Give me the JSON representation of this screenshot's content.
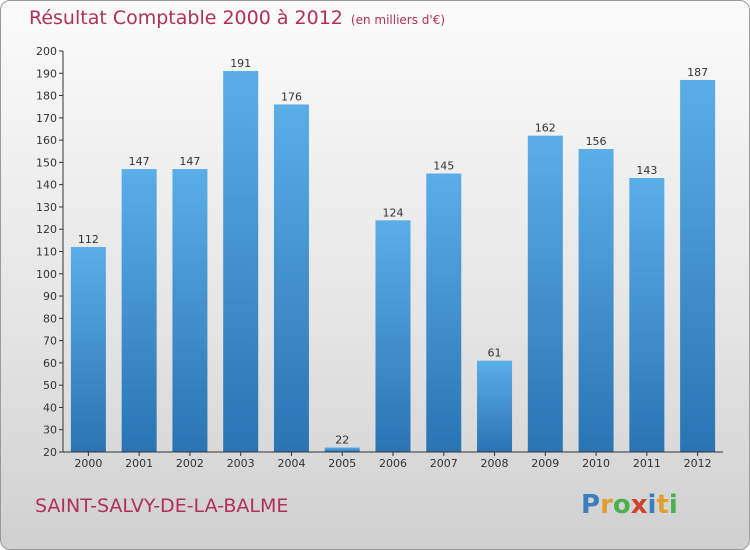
{
  "title": "Résultat Comptable 2000 à 2012",
  "subtitle": "(en milliers d'€)",
  "commune": "SAINT-SALVY-DE-LA-BALME",
  "logo": {
    "letters": [
      "P",
      "r",
      "o",
      "x",
      "i",
      "t",
      "i"
    ],
    "colors": [
      "#3a7ec0",
      "#e0a030",
      "#4caf50",
      "#d0402c",
      "#3a7ec0",
      "#e0a030",
      "#4caf50"
    ]
  },
  "chart_data": {
    "type": "bar",
    "categories": [
      "2000",
      "2001",
      "2002",
      "2003",
      "2004",
      "2005",
      "2006",
      "2007",
      "2008",
      "2009",
      "2010",
      "2011",
      "2012"
    ],
    "values": [
      112,
      147,
      147,
      191,
      176,
      22,
      124,
      145,
      61,
      162,
      156,
      143,
      187
    ],
    "ylim": [
      20,
      200
    ],
    "yticks": [
      20,
      30,
      40,
      50,
      60,
      70,
      80,
      90,
      100,
      110,
      120,
      130,
      140,
      150,
      160,
      170,
      180,
      190,
      200
    ],
    "grid": false,
    "colors": {
      "bar_top": "#5aaee8",
      "bar_bottom": "#2a74b4",
      "axis": "#333333",
      "label": "#333333"
    }
  }
}
